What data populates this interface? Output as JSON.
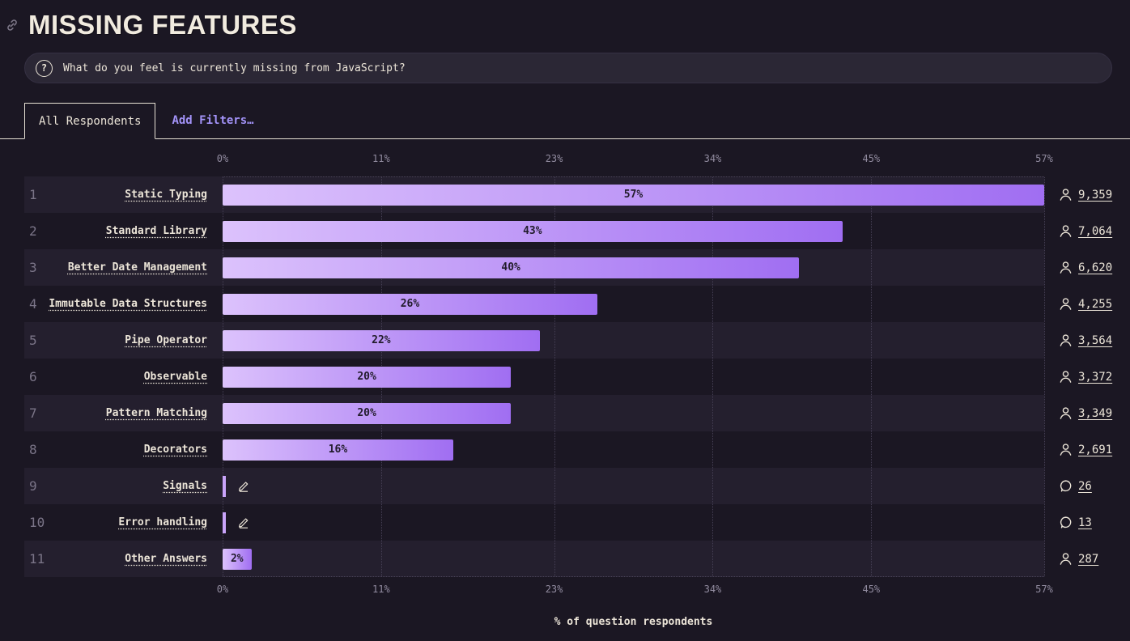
{
  "header": {
    "title": "MISSING FEATURES"
  },
  "question": {
    "icon_glyph": "?",
    "text": "What do you feel is currently missing from JavaScript?"
  },
  "tabs": {
    "all_respondents": "All Respondents",
    "add_filters": "Add Filters…"
  },
  "colors": {
    "background": "#1b1723",
    "row_band": "#241f2e",
    "bar_gradient_start": "#dcc2fc",
    "bar_gradient_end": "#a06ef2",
    "accent_purple": "#a393f8",
    "cream_text": "#ece5d8"
  },
  "chart_data": {
    "type": "bar",
    "orientation": "horizontal",
    "title": "Missing Features",
    "xlabel": "% of question respondents",
    "xlim": [
      0,
      57
    ],
    "xticks": [
      0,
      11,
      23,
      34,
      45,
      57
    ],
    "xtick_labels": [
      "0%",
      "11%",
      "23%",
      "34%",
      "45%",
      "57%"
    ],
    "grid": "vertical dotted",
    "legend": "none",
    "rows": [
      {
        "rank": 1,
        "label": "Static Typing",
        "percent": 57,
        "percent_label": "57%",
        "count": "9,359",
        "answer_type": "choice"
      },
      {
        "rank": 2,
        "label": "Standard Library",
        "percent": 43,
        "percent_label": "43%",
        "count": "7,064",
        "answer_type": "choice"
      },
      {
        "rank": 3,
        "label": "Better Date Management",
        "percent": 40,
        "percent_label": "40%",
        "count": "6,620",
        "answer_type": "choice"
      },
      {
        "rank": 4,
        "label": "Immutable Data Structures",
        "percent": 26,
        "percent_label": "26%",
        "count": "4,255",
        "answer_type": "choice"
      },
      {
        "rank": 5,
        "label": "Pipe Operator",
        "percent": 22,
        "percent_label": "22%",
        "count": "3,564",
        "answer_type": "choice"
      },
      {
        "rank": 6,
        "label": "Observable",
        "percent": 20,
        "percent_label": "20%",
        "count": "3,372",
        "answer_type": "choice"
      },
      {
        "rank": 7,
        "label": "Pattern Matching",
        "percent": 20,
        "percent_label": "20%",
        "count": "3,349",
        "answer_type": "choice"
      },
      {
        "rank": 8,
        "label": "Decorators",
        "percent": 16,
        "percent_label": "16%",
        "count": "2,691",
        "answer_type": "choice"
      },
      {
        "rank": 9,
        "label": "Signals",
        "percent": null,
        "percent_label": "",
        "count": "26",
        "answer_type": "freeform"
      },
      {
        "rank": 10,
        "label": "Error handling",
        "percent": null,
        "percent_label": "",
        "count": "13",
        "answer_type": "freeform"
      },
      {
        "rank": 11,
        "label": "Other Answers",
        "percent": 2,
        "percent_label": "2%",
        "count": "287",
        "answer_type": "choice"
      }
    ]
  }
}
